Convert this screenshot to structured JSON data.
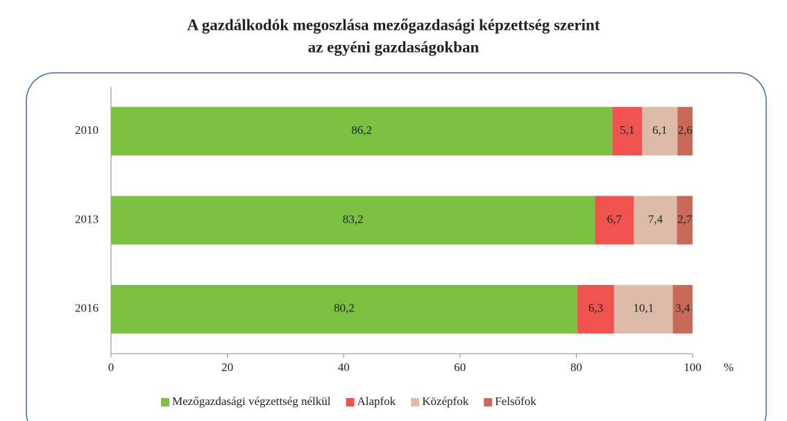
{
  "chart_data": {
    "type": "bar",
    "orientation": "horizontal",
    "stacked": true,
    "title": "A gazdálkodók megoszlása mezőgazdasági képzettség szerint",
    "subtitle": "az egyéni gazdaságokban",
    "x_label": "%",
    "categories": [
      "2010",
      "2013",
      "2016"
    ],
    "series": [
      {
        "name": "Mezőgazdasági végzettség nélkül",
        "color": "#7ac142",
        "values": [
          86.2,
          83.2,
          80.2
        ],
        "value_labels": [
          "86,2",
          "83,2",
          "80,2"
        ]
      },
      {
        "name": "Alapfok",
        "color": "#f0524f",
        "values": [
          5.1,
          6.7,
          6.3
        ],
        "value_labels": [
          "5,1",
          "6,7",
          "6,3"
        ]
      },
      {
        "name": "Középfok",
        "color": "#dcbca8",
        "values": [
          6.1,
          7.4,
          10.1
        ],
        "value_labels": [
          "6,1",
          "7,4",
          "10,1"
        ]
      },
      {
        "name": "Felsőfok",
        "color": "#c96a58",
        "values": [
          2.6,
          2.7,
          3.4
        ],
        "value_labels": [
          "2,6",
          "2,7",
          "3,4"
        ]
      }
    ],
    "xlim": [
      0,
      100
    ],
    "xticks": [
      0,
      20,
      40,
      60,
      80,
      100
    ],
    "legend": "bottom"
  }
}
